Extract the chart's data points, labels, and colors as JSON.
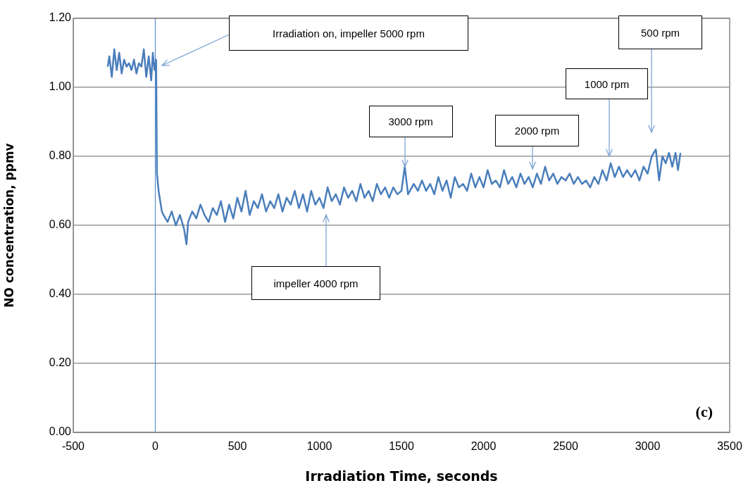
{
  "chart_data": {
    "type": "line",
    "xlabel": "Irradiation Time, seconds",
    "ylabel": "NO concentration, ppmv",
    "x": [
      -290,
      -280,
      -265,
      -250,
      -235,
      -220,
      -205,
      -190,
      -175,
      -160,
      -145,
      -130,
      -115,
      -100,
      -85,
      -70,
      -55,
      -40,
      -25,
      -15,
      -5,
      5,
      10,
      20,
      30,
      40,
      50,
      75,
      100,
      125,
      150,
      175,
      190,
      200,
      225,
      250,
      275,
      300,
      325,
      350,
      375,
      400,
      425,
      450,
      475,
      500,
      525,
      550,
      575,
      600,
      625,
      650,
      675,
      700,
      725,
      750,
      775,
      800,
      825,
      850,
      875,
      900,
      925,
      950,
      975,
      1000,
      1025,
      1050,
      1075,
      1100,
      1125,
      1150,
      1175,
      1200,
      1225,
      1250,
      1275,
      1300,
      1325,
      1350,
      1375,
      1400,
      1425,
      1450,
      1475,
      1500,
      1520,
      1540,
      1575,
      1600,
      1625,
      1650,
      1675,
      1700,
      1725,
      1750,
      1775,
      1800,
      1825,
      1850,
      1875,
      1900,
      1925,
      1950,
      1975,
      2000,
      2025,
      2050,
      2075,
      2100,
      2125,
      2150,
      2175,
      2200,
      2225,
      2250,
      2275,
      2300,
      2325,
      2350,
      2375,
      2400,
      2425,
      2450,
      2475,
      2500,
      2525,
      2550,
      2575,
      2600,
      2625,
      2650,
      2675,
      2700,
      2725,
      2750,
      2775,
      2800,
      2825,
      2850,
      2875,
      2900,
      2925,
      2950,
      2975,
      3000,
      3025,
      3050,
      3070,
      3090,
      3110,
      3130,
      3150,
      3170,
      3185,
      3200
    ],
    "series": [
      {
        "color": "#4a7ebb",
        "values": [
          1.06,
          1.09,
          1.03,
          1.11,
          1.05,
          1.1,
          1.04,
          1.08,
          1.06,
          1.07,
          1.05,
          1.08,
          1.04,
          1.07,
          1.06,
          1.11,
          1.03,
          1.09,
          1.02,
          1.1,
          1.05,
          1.08,
          0.75,
          0.7,
          0.67,
          0.64,
          0.63,
          0.61,
          0.64,
          0.6,
          0.63,
          0.59,
          0.545,
          0.61,
          0.64,
          0.62,
          0.66,
          0.63,
          0.61,
          0.65,
          0.63,
          0.67,
          0.61,
          0.66,
          0.62,
          0.68,
          0.64,
          0.7,
          0.63,
          0.67,
          0.65,
          0.69,
          0.64,
          0.67,
          0.65,
          0.69,
          0.64,
          0.68,
          0.66,
          0.7,
          0.65,
          0.69,
          0.64,
          0.7,
          0.66,
          0.68,
          0.65,
          0.71,
          0.67,
          0.69,
          0.66,
          0.71,
          0.68,
          0.7,
          0.67,
          0.72,
          0.68,
          0.7,
          0.67,
          0.72,
          0.69,
          0.71,
          0.68,
          0.71,
          0.69,
          0.7,
          0.77,
          0.69,
          0.72,
          0.7,
          0.73,
          0.7,
          0.72,
          0.69,
          0.74,
          0.7,
          0.73,
          0.68,
          0.74,
          0.71,
          0.72,
          0.7,
          0.75,
          0.71,
          0.74,
          0.71,
          0.76,
          0.72,
          0.73,
          0.71,
          0.76,
          0.72,
          0.74,
          0.71,
          0.75,
          0.72,
          0.74,
          0.71,
          0.75,
          0.72,
          0.77,
          0.73,
          0.75,
          0.72,
          0.74,
          0.73,
          0.75,
          0.72,
          0.74,
          0.72,
          0.73,
          0.71,
          0.74,
          0.72,
          0.76,
          0.73,
          0.78,
          0.74,
          0.77,
          0.74,
          0.76,
          0.74,
          0.76,
          0.73,
          0.77,
          0.75,
          0.8,
          0.82,
          0.73,
          0.8,
          0.78,
          0.81,
          0.77,
          0.81,
          0.76,
          0.81
        ]
      }
    ],
    "xlim": [
      -500,
      3500
    ],
    "xticks": [
      -500,
      0,
      500,
      1000,
      1500,
      2000,
      2500,
      3000,
      3500
    ],
    "ylim": [
      0,
      1.2
    ],
    "yticks": [
      {
        "value": 0,
        "label": "0.00"
      },
      {
        "value": 0.2,
        "label": "0.20"
      },
      {
        "value": 0.4,
        "label": "0.40"
      },
      {
        "value": 0.6,
        "label": "0.60"
      },
      {
        "value": 0.8,
        "label": "0.80"
      },
      {
        "value": 1.0,
        "label": "1.00"
      },
      {
        "value": 1.2,
        "label": "1.20"
      }
    ],
    "grid": "y",
    "legend": false,
    "marker": "none",
    "line_style": "solid",
    "ref_lines": [
      {
        "axis": "x",
        "value": 0,
        "color": "#5b8fd0"
      }
    ],
    "annotations": [
      "Irradiation on, impeller 5000 rpm",
      "impeller 4000 rpm",
      {
        "text": "3000 rpm",
        "x": 1520,
        "y": 0.77
      },
      "2000 rpm",
      "1000 rpm",
      "500 rpm",
      "(c)"
    ]
  }
}
